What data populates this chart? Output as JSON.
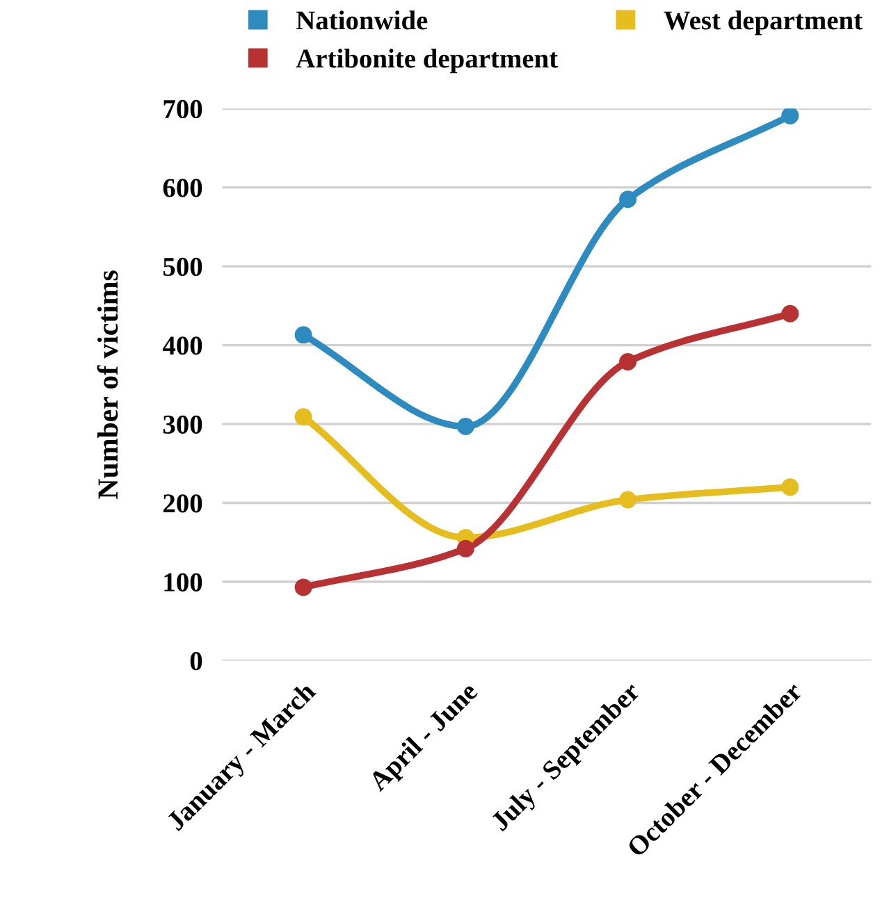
{
  "chart_data": {
    "type": "line",
    "ylabel": "Number of victims",
    "categories": [
      "January - March",
      "April - June",
      "July - September",
      "October - December"
    ],
    "series": [
      {
        "name": "Nationwide",
        "color": "#2e8bc0",
        "values": [
          413,
          297,
          585,
          691
        ]
      },
      {
        "name": "West department",
        "color": "#e6bd1f",
        "values": [
          309,
          156,
          204,
          220
        ]
      },
      {
        "name": "Artibonite department",
        "color": "#b83233",
        "values": [
          93,
          142,
          379,
          440
        ]
      }
    ],
    "ylim": [
      0,
      700
    ],
    "yticks": [
      0,
      100,
      200,
      300,
      400,
      500,
      600,
      700
    ],
    "grid": "y",
    "legend": "top",
    "marker": "circle",
    "line_style": "solid"
  }
}
